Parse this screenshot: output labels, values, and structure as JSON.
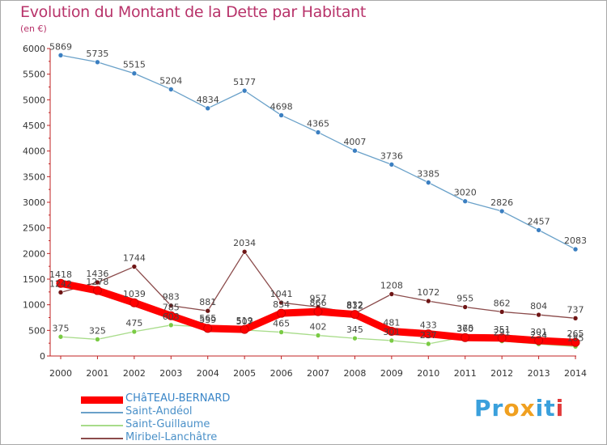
{
  "chart_data": {
    "type": "line",
    "title": "Evolution du Montant de la Dette par Habitant",
    "unit": "(en €)",
    "xlabel": "",
    "ylabel": "",
    "x": [
      "2000",
      "2001",
      "2002",
      "2003",
      "2004",
      "2005",
      "2006",
      "2007",
      "2008",
      "2009",
      "2010",
      "2011",
      "2012",
      "2013",
      "2014"
    ],
    "ylim": [
      0,
      6000
    ],
    "yticks": [
      0,
      500,
      1000,
      1500,
      2000,
      2500,
      3000,
      3500,
      4000,
      4500,
      5000,
      5500,
      6000
    ],
    "grid": false,
    "legend_position": "bottom-left",
    "series": [
      {
        "name": "CHâTEAU-BERNARD",
        "color": "#ff0000",
        "marker": "#ff0000",
        "values": [
          1418,
          1278,
          1039,
          785,
          539,
          519,
          834,
          866,
          812,
          481,
          433,
          360,
          351,
          301,
          265
        ]
      },
      {
        "name": "Saint-Andéol",
        "color": "#6aa1c9",
        "marker": "#3b7fc1",
        "values": [
          5869,
          5735,
          5515,
          5204,
          4834,
          5177,
          4698,
          4365,
          4007,
          3736,
          3385,
          3020,
          2826,
          2457,
          2083
        ]
      },
      {
        "name": "Saint-Guillaume",
        "color": "#a8dc8a",
        "marker": "#7acb44",
        "values": [
          375,
          325,
          475,
          603,
          565,
          507,
          465,
          402,
          345,
          301,
          237,
          375,
          291,
          234,
          185
        ]
      },
      {
        "name": "Miribel-Lanchâtre",
        "color": "#8b4b4b",
        "marker": "#6e1515",
        "values": [
          1242,
          1436,
          1744,
          983,
          881,
          2034,
          1041,
          957,
          832,
          1208,
          1072,
          955,
          862,
          804,
          737
        ]
      }
    ]
  },
  "logo": {
    "text": "Proxiti",
    "letters": [
      "P",
      "r",
      "o",
      "x",
      "i",
      "t",
      "i"
    ],
    "colors": [
      "#3aa0dc",
      "#3aa0dc",
      "#f0a020",
      "#f0a020",
      "#3aa0dc",
      "#3aa0dc",
      "#e23a3a"
    ]
  }
}
